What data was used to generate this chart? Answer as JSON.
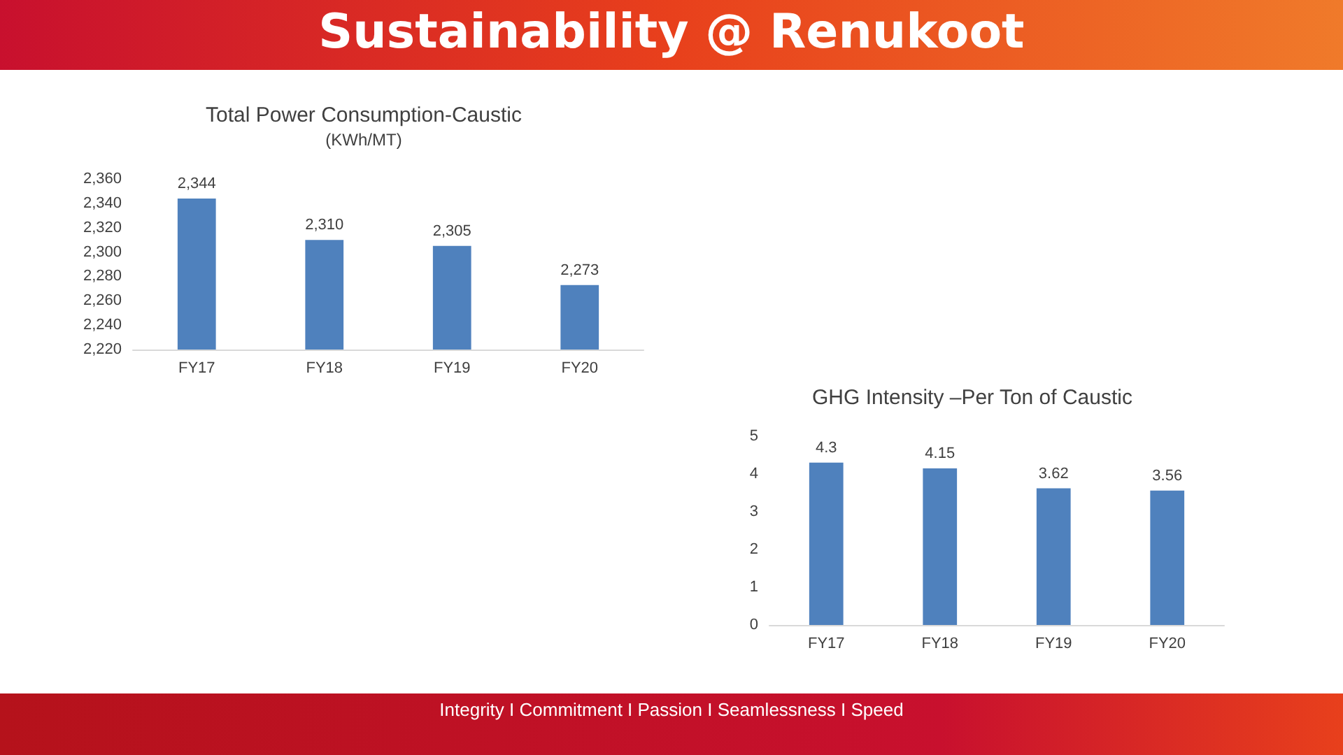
{
  "chart_data": [
    {
      "type": "bar",
      "title": "Total Power Consumption-Caustic",
      "subtitle": "(KWh/MT)",
      "categories": [
        "FY17",
        "FY18",
        "FY19",
        "FY20"
      ],
      "values": [
        2344,
        2310,
        2305,
        2273
      ],
      "value_labels": [
        "2,344",
        "2,310",
        "2,305",
        "2,273"
      ],
      "color": "#4f81bd",
      "ylim": [
        2220,
        2360
      ],
      "yticks": [
        {
          "value": 2220,
          "label": "2,220"
        },
        {
          "value": 2240,
          "label": "2,240"
        },
        {
          "value": 2260,
          "label": "2,260"
        },
        {
          "value": 2280,
          "label": "2,280"
        },
        {
          "value": 2300,
          "label": "2,300"
        },
        {
          "value": 2320,
          "label": "2,320"
        },
        {
          "value": 2340,
          "label": "2,340"
        },
        {
          "value": 2360,
          "label": "2,360"
        }
      ],
      "grid": false,
      "annotations": [
        "Sustainability @ Renukoot",
        "Integrity  I  Commitment  I  Passion  I  Seamlessness  I  Speed"
      ]
    },
    {
      "type": "bar",
      "title": "GHG Intensity –Per Ton of Caustic",
      "categories": [
        "FY17",
        "FY18",
        "FY19",
        "FY20"
      ],
      "values": [
        4.3,
        4.15,
        3.62,
        3.56
      ],
      "data_labels": true,
      "color": "#4f81bd",
      "ylim": [
        0,
        5
      ],
      "yticks": [
        0,
        1,
        2,
        3,
        4,
        5
      ],
      "grid": false
    }
  ]
}
